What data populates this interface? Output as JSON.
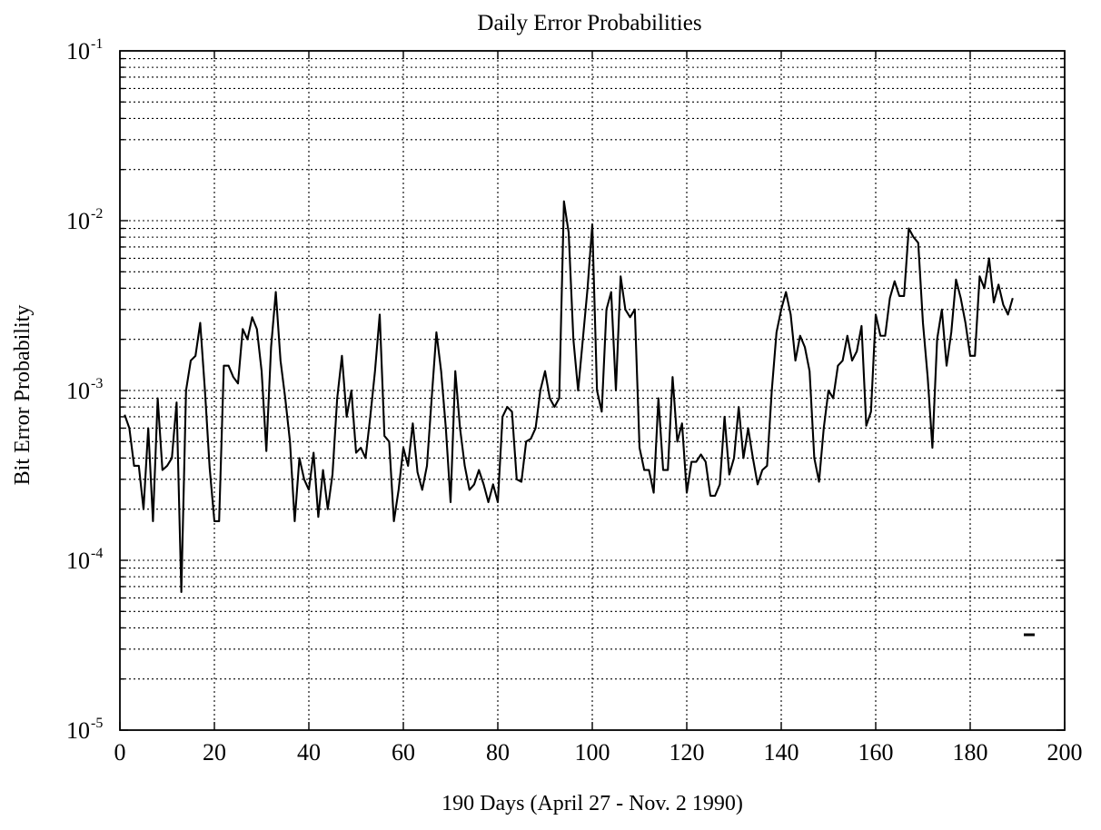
{
  "chart_data": {
    "type": "line",
    "title": "Daily Error Probabilities",
    "xlabel": "190 Days (April 27 - Nov. 2 1990)",
    "ylabel": "Bit Error Probability",
    "xlim": [
      0,
      200
    ],
    "ylim": [
      1e-05,
      0.1
    ],
    "yscale": "log",
    "grid": true,
    "x_ticks": [
      0,
      20,
      40,
      60,
      80,
      100,
      120,
      140,
      160,
      180,
      200
    ],
    "y_ticks": [
      {
        "base": "10",
        "exp": "-5",
        "value": 1e-05
      },
      {
        "base": "10",
        "exp": "-4",
        "value": 0.0001
      },
      {
        "base": "10",
        "exp": "-3",
        "value": 0.001
      },
      {
        "base": "10",
        "exp": "-2",
        "value": 0.01
      },
      {
        "base": "10",
        "exp": "-1",
        "value": 0.1
      }
    ],
    "series": [
      {
        "x": [
          1,
          2,
          3,
          4,
          5,
          6,
          7,
          8,
          9,
          10,
          11,
          12,
          13,
          14,
          15,
          16,
          17,
          18,
          19,
          20,
          21,
          22,
          23,
          24,
          25,
          26,
          27,
          28,
          29,
          30,
          31,
          32,
          33,
          34,
          35,
          36,
          37,
          38,
          39,
          40,
          41,
          42,
          43,
          44,
          45,
          46,
          47,
          48,
          49,
          50,
          51,
          52,
          53,
          54,
          55,
          56,
          57,
          58,
          59,
          60,
          61,
          62,
          63,
          64,
          65,
          66,
          67,
          68,
          69,
          70,
          71,
          72,
          73,
          74,
          75,
          76,
          77,
          78,
          79,
          80,
          81,
          82,
          83,
          84,
          85,
          86,
          87,
          88,
          89,
          90,
          91,
          92,
          93,
          94,
          95,
          96,
          97,
          98,
          99,
          100,
          101,
          102,
          103,
          104,
          105,
          106,
          107,
          108,
          109,
          110,
          111,
          112,
          113,
          114,
          115,
          116,
          117,
          118,
          119,
          120,
          121,
          122,
          123,
          124,
          125,
          126,
          127,
          128,
          129,
          130,
          131,
          132,
          133,
          134,
          135,
          136,
          137,
          138,
          139,
          140,
          141,
          142,
          143,
          144,
          145,
          146,
          147,
          148,
          149,
          150,
          151,
          152,
          153,
          154,
          155,
          156,
          157,
          158,
          159,
          160,
          161,
          162,
          163,
          164,
          165,
          166,
          167,
          168,
          169,
          170,
          171,
          172,
          173,
          174,
          175,
          176,
          177,
          178,
          179,
          180,
          181,
          182,
          183,
          184,
          185,
          186,
          187,
          188,
          189
        ],
        "y": [
          0.00072,
          0.0006,
          0.00036,
          0.00036,
          0.0002,
          0.0006,
          0.00017,
          0.0009,
          0.00034,
          0.00036,
          0.0004,
          0.00085,
          6.5e-05,
          0.001,
          0.0015,
          0.0016,
          0.0025,
          0.001,
          0.00035,
          0.00017,
          0.00017,
          0.0014,
          0.0014,
          0.0012,
          0.0011,
          0.0023,
          0.002,
          0.0027,
          0.0023,
          0.0013,
          0.00044,
          0.0018,
          0.0038,
          0.0015,
          0.0009,
          0.0005,
          0.00017,
          0.0004,
          0.0003,
          0.00026,
          0.00043,
          0.00018,
          0.00034,
          0.0002,
          0.00032,
          0.0009,
          0.0016,
          0.0007,
          0.001,
          0.00043,
          0.00046,
          0.0004,
          0.0007,
          0.0013,
          0.0028,
          0.00054,
          0.0005,
          0.00017,
          0.00026,
          0.00046,
          0.00036,
          0.00064,
          0.00033,
          0.00026,
          0.00036,
          0.0009,
          0.0022,
          0.0013,
          0.0006,
          0.00022,
          0.0013,
          0.0006,
          0.00036,
          0.00026,
          0.00028,
          0.00034,
          0.00028,
          0.00022,
          0.00028,
          0.00022,
          0.0007,
          0.0008,
          0.00075,
          0.0003,
          0.00029,
          0.0005,
          0.00052,
          0.0006,
          0.001,
          0.0013,
          0.0009,
          0.0008,
          0.0009,
          0.013,
          0.0085,
          0.002,
          0.001,
          0.002,
          0.004,
          0.0095,
          0.001,
          0.00075,
          0.003,
          0.0038,
          0.001,
          0.0047,
          0.003,
          0.0027,
          0.003,
          0.00046,
          0.00034,
          0.00034,
          0.00025,
          0.0009,
          0.00034,
          0.00034,
          0.0012,
          0.0005,
          0.00064,
          0.00025,
          0.00038,
          0.00038,
          0.00042,
          0.00038,
          0.00024,
          0.00024,
          0.00028,
          0.0007,
          0.00032,
          0.0004,
          0.0008,
          0.0004,
          0.0006,
          0.0004,
          0.00028,
          0.00034,
          0.00036,
          0.001,
          0.0022,
          0.003,
          0.0038,
          0.0028,
          0.0015,
          0.0021,
          0.0018,
          0.0013,
          0.0004,
          0.00029,
          0.0006,
          0.001,
          0.0009,
          0.0014,
          0.0015,
          0.0021,
          0.0015,
          0.0017,
          0.0024,
          0.00062,
          0.00075,
          0.0028,
          0.0021,
          0.0021,
          0.0035,
          0.0044,
          0.0036,
          0.0036,
          0.009,
          0.008,
          0.0074,
          0.0025,
          0.0012,
          0.00046,
          0.002,
          0.003,
          0.0014,
          0.0022,
          0.0045,
          0.0035,
          0.0025,
          0.0016,
          0.0016,
          0.0047,
          0.004,
          0.006,
          0.0033,
          0.0042,
          0.0032,
          0.0028,
          0.0035
        ]
      }
    ]
  }
}
